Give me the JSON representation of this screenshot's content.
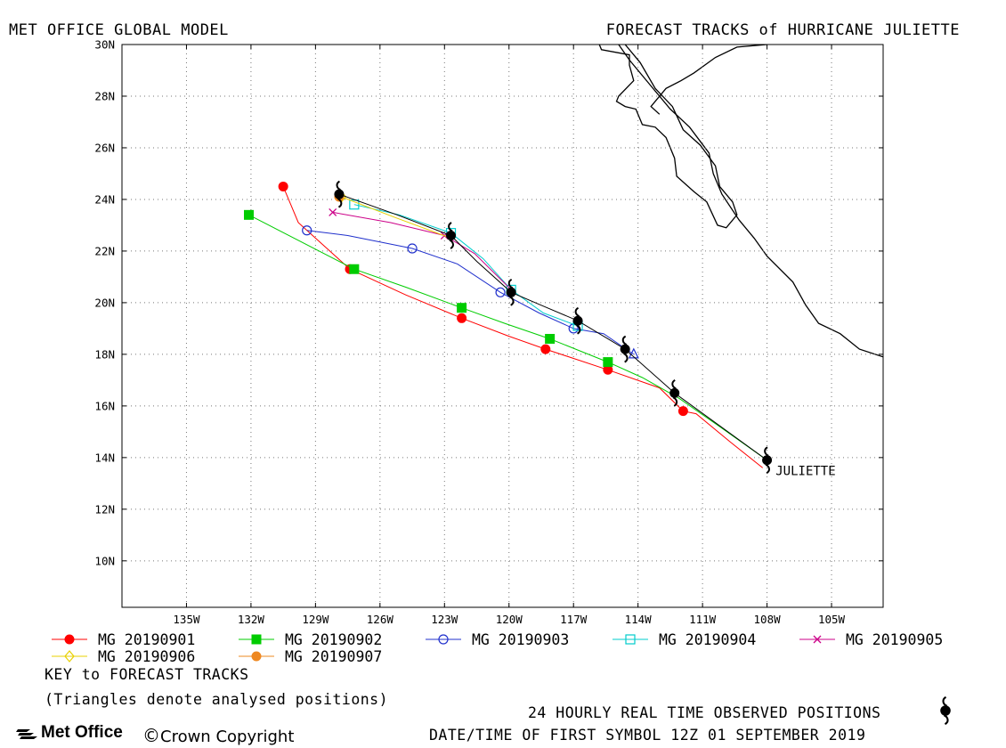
{
  "header": {
    "left_title": "MET OFFICE GLOBAL MODEL",
    "right_title": "FORECAST TRACKS of HURRICANE JULIETTE"
  },
  "chart_data": {
    "type": "map-tracks",
    "lon_range": [
      -138,
      -102.6
    ],
    "lat_range": [
      8.2,
      30
    ],
    "lon_ticks": [
      -135,
      -132,
      -129,
      -126,
      -123,
      -120,
      -117,
      -114,
      -111,
      -108,
      -105
    ],
    "lon_tick_labels": [
      "135W",
      "132W",
      "129W",
      "126W",
      "123W",
      "120W",
      "117W",
      "114W",
      "111W",
      "108W",
      "105W"
    ],
    "lat_ticks": [
      10,
      12,
      14,
      16,
      18,
      20,
      22,
      24,
      26,
      28,
      30
    ],
    "lat_tick_labels": [
      "10N",
      "12N",
      "14N",
      "16N",
      "18N",
      "20N",
      "22N",
      "24N",
      "26N",
      "28N",
      "30N"
    ],
    "grid": "dotted",
    "storm_label": "JULIETTE",
    "storm_label_pos": [
      -107.6,
      13.6
    ],
    "observed": [
      [
        -108.0,
        13.9
      ],
      [
        -112.3,
        16.5
      ],
      [
        -114.6,
        18.2
      ],
      [
        -116.8,
        19.3
      ],
      [
        -119.9,
        20.4
      ],
      [
        -122.7,
        22.6
      ],
      [
        -127.9,
        24.2
      ]
    ],
    "observed_track": [
      [
        -108.0,
        13.9
      ],
      [
        -112.3,
        16.5
      ],
      [
        -114.6,
        18.2
      ],
      [
        -116.8,
        19.3
      ],
      [
        -118.5,
        19.9
      ],
      [
        -119.9,
        20.4
      ],
      [
        -121.5,
        21.6
      ],
      [
        -122.7,
        22.6
      ],
      [
        -125.2,
        23.4
      ],
      [
        -127.9,
        24.2
      ]
    ],
    "series": [
      {
        "name": "MG 20190901",
        "color": "#ff0000",
        "marker": "filled-circle",
        "points": [
          [
            -108.2,
            13.6
          ],
          [
            -109.7,
            14.6
          ],
          [
            -111.3,
            15.7
          ],
          [
            -111.9,
            15.8
          ],
          [
            -113.0,
            16.7
          ],
          [
            -115.4,
            17.4
          ],
          [
            -118.3,
            18.2
          ],
          [
            -120.0,
            18.7
          ],
          [
            -122.2,
            19.4
          ],
          [
            -124.8,
            20.3
          ],
          [
            -127.4,
            21.3
          ],
          [
            -129.8,
            23.1
          ],
          [
            -130.5,
            24.5
          ]
        ],
        "markers": [
          [
            -111.9,
            15.8
          ],
          [
            -115.4,
            17.4
          ],
          [
            -118.3,
            18.2
          ],
          [
            -122.2,
            19.4
          ],
          [
            -127.4,
            21.3
          ],
          [
            -130.5,
            24.5
          ]
        ]
      },
      {
        "name": "MG 20190902",
        "color": "#00cc00",
        "marker": "filled-square",
        "points": [
          [
            -108.0,
            13.9
          ],
          [
            -110.2,
            15.2
          ],
          [
            -112.1,
            16.3
          ],
          [
            -113.8,
            17.1
          ],
          [
            -115.4,
            17.7
          ],
          [
            -116.9,
            18.2
          ],
          [
            -118.1,
            18.6
          ],
          [
            -120.2,
            19.2
          ],
          [
            -122.2,
            19.8
          ],
          [
            -124.8,
            20.6
          ],
          [
            -127.2,
            21.3
          ],
          [
            -132.1,
            23.4
          ]
        ],
        "markers": [
          [
            -115.4,
            17.7
          ],
          [
            -118.1,
            18.6
          ],
          [
            -122.2,
            19.8
          ],
          [
            -127.2,
            21.3
          ],
          [
            -132.1,
            23.4
          ]
        ]
      },
      {
        "name": "MG 20190903",
        "color": "#2030cc",
        "marker": "open-circle",
        "points": [
          [
            -114.2,
            18.0
          ],
          [
            -115.6,
            18.8
          ],
          [
            -117.0,
            19.0
          ],
          [
            -118.6,
            19.6
          ],
          [
            -120.4,
            20.4
          ],
          [
            -122.4,
            21.5
          ],
          [
            -124.5,
            22.1
          ],
          [
            -127.5,
            22.6
          ],
          [
            -129.4,
            22.8
          ]
        ],
        "markers": [
          [
            -117.0,
            19.0
          ],
          [
            -120.4,
            20.4
          ],
          [
            -124.5,
            22.1
          ],
          [
            -129.4,
            22.8
          ]
        ],
        "start_triangle": [
          -114.2,
          18.0
        ]
      },
      {
        "name": "MG 20190904",
        "color": "#00cccc",
        "marker": "open-square",
        "points": [
          [
            -116.8,
            19.1
          ],
          [
            -118.4,
            19.6
          ],
          [
            -119.9,
            20.5
          ],
          [
            -121.2,
            21.7
          ],
          [
            -122.7,
            22.7
          ],
          [
            -125.1,
            23.4
          ],
          [
            -127.2,
            23.8
          ]
        ],
        "markers": [
          [
            -116.8,
            19.1
          ],
          [
            -119.9,
            20.5
          ],
          [
            -122.7,
            22.7
          ],
          [
            -127.2,
            23.8
          ]
        ]
      },
      {
        "name": "MG 20190905",
        "color": "#cc0088",
        "marker": "cross",
        "points": [
          [
            -119.9,
            20.5
          ],
          [
            -121.6,
            21.9
          ],
          [
            -123.0,
            22.6
          ],
          [
            -125.5,
            23.1
          ],
          [
            -128.2,
            23.5
          ]
        ],
        "markers": [
          [
            -123.0,
            22.6
          ],
          [
            -128.2,
            23.5
          ]
        ]
      },
      {
        "name": "MG 20190906",
        "color": "#e8d000",
        "marker": "open-diamond",
        "points": [
          [
            -122.7,
            22.5
          ],
          [
            -125.3,
            23.3
          ],
          [
            -127.8,
            24.1
          ]
        ],
        "markers": [
          [
            -127.8,
            24.1
          ]
        ]
      },
      {
        "name": "MG 20190907",
        "color": "#ee8822",
        "marker": "filled-circle",
        "points": [
          [
            -127.9,
            24.1
          ]
        ],
        "markers": [
          [
            -127.9,
            24.1
          ]
        ]
      }
    ],
    "coastline": [
      [
        [
          -114.9,
          30.0
        ],
        [
          -114.4,
          29.4
        ],
        [
          -113.5,
          28.5
        ],
        [
          -112.5,
          27.5
        ],
        [
          -111.6,
          26.8
        ],
        [
          -110.7,
          25.8
        ],
        [
          -110.5,
          25.0
        ],
        [
          -110.1,
          24.2
        ],
        [
          -109.3,
          23.2
        ],
        [
          -108.6,
          22.5
        ],
        [
          -108.0,
          21.8
        ],
        [
          -106.8,
          20.8
        ],
        [
          -106.2,
          19.9
        ],
        [
          -105.6,
          19.2
        ],
        [
          -104.6,
          18.8
        ],
        [
          -103.7,
          18.2
        ],
        [
          -102.6,
          17.9
        ]
      ],
      [
        [
          -115.8,
          30.0
        ],
        [
          -115.7,
          29.8
        ],
        [
          -114.4,
          29.6
        ],
        [
          -114.4,
          29.2
        ],
        [
          -114.2,
          28.6
        ],
        [
          -114.9,
          28.0
        ],
        [
          -115.0,
          27.8
        ],
        [
          -114.6,
          27.6
        ],
        [
          -114.1,
          27.5
        ],
        [
          -113.8,
          26.9
        ],
        [
          -113.2,
          26.8
        ],
        [
          -112.7,
          26.4
        ],
        [
          -112.3,
          25.6
        ],
        [
          -112.2,
          24.9
        ],
        [
          -111.4,
          24.3
        ],
        [
          -110.8,
          23.9
        ],
        [
          -110.3,
          23.0
        ],
        [
          -109.9,
          22.9
        ],
        [
          -109.4,
          23.4
        ],
        [
          -109.6,
          23.9
        ],
        [
          -110.2,
          24.5
        ],
        [
          -110.4,
          25.3
        ],
        [
          -111.1,
          26.1
        ],
        [
          -111.9,
          26.7
        ],
        [
          -112.4,
          27.6
        ],
        [
          -113.2,
          28.3
        ],
        [
          -113.9,
          29.3
        ],
        [
          -114.6,
          30.0
        ]
      ],
      [
        [
          -108.0,
          30.0
        ],
        [
          -109.4,
          29.9
        ],
        [
          -110.4,
          29.5
        ],
        [
          -111.4,
          28.9
        ],
        [
          -112.0,
          28.6
        ],
        [
          -112.7,
          28.3
        ],
        [
          -113.4,
          27.6
        ],
        [
          -113.0,
          27.3
        ]
      ]
    ]
  },
  "legend": {
    "items": [
      {
        "label": "MG 20190901",
        "color": "#ff0000",
        "marker": "filled-circle"
      },
      {
        "label": "MG 20190902",
        "color": "#00cc00",
        "marker": "filled-square"
      },
      {
        "label": "MG 20190903",
        "color": "#2030cc",
        "marker": "open-circle"
      },
      {
        "label": "MG 20190904",
        "color": "#00cccc",
        "marker": "open-square"
      },
      {
        "label": "MG 20190905",
        "color": "#cc0088",
        "marker": "cross"
      },
      {
        "label": "MG 20190906",
        "color": "#e8d000",
        "marker": "open-diamond"
      },
      {
        "label": "MG 20190907",
        "color": "#ee8822",
        "marker": "filled-circle"
      }
    ],
    "key_title": "KEY to FORECAST TRACKS",
    "key_note": "(Triangles denote analysed positions)"
  },
  "footer": {
    "observed_label": "24 HOURLY REAL TIME OBSERVED POSITIONS",
    "datetime_label": "DATE/TIME OF FIRST SYMBOL 12Z 01 SEPTEMBER 2019",
    "logo_text": "Met Office",
    "copyright": "Crown Copyright"
  }
}
